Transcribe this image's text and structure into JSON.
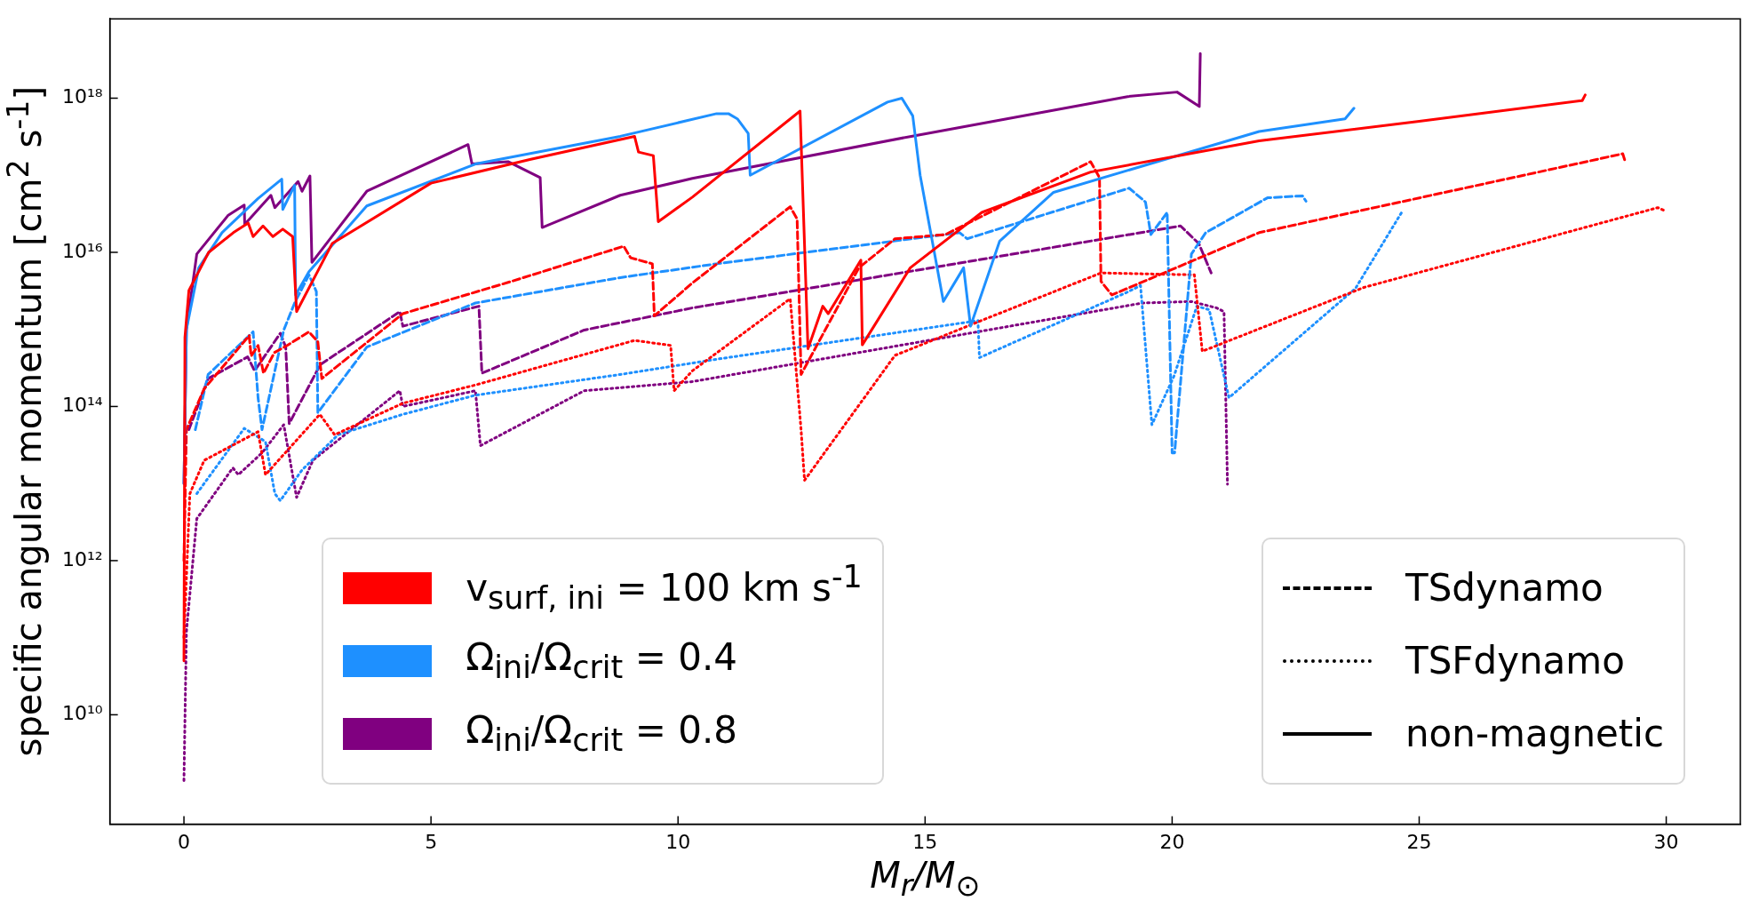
{
  "chart_data": {
    "type": "line",
    "xlabel": "M$_{r}$/M$_{⊙}$",
    "ylabel": "specific angular momentum [cm$^{2}$ s$^{-1}$]",
    "log": "y",
    "legend": "bottom",
    "xlim": [
      -1.5,
      31.5
    ],
    "xticks": [
      0,
      5,
      10,
      15,
      20,
      25,
      30
    ],
    "ylim": [
      380000000.0,
      1.07e+19
    ],
    "yticks": [
      {
        "value": 10000000000.0,
        "label": "10¹⁰"
      },
      {
        "value": 1000000000000.0,
        "label": "10¹²"
      },
      {
        "value": 100000000000000.0,
        "label": "10¹⁴"
      },
      {
        "value": 1e+16,
        "label": "10¹⁶"
      },
      {
        "value": 1e+18,
        "label": "10¹⁸"
      }
    ],
    "series": [
      {
        "color": "#ff0000",
        "line_style": "solid",
        "x": [
          0,
          0.02,
          0.1,
          0.5,
          1.0,
          1.3,
          1.4,
          1.6,
          1.8,
          2.0,
          2.2,
          2.28,
          3.0,
          5.0,
          7.0,
          9.12,
          9.2,
          9.5,
          9.6,
          10.29,
          12.47,
          12.63,
          12.93,
          13.04,
          13.7,
          13.73,
          14.7,
          16.15,
          18.35,
          21.76,
          25,
          28.3,
          28.36
        ],
        "values": [
          50000000000.0,
          790000000000000.0,
          3200000000000000.0,
          1e+16,
          1.8e+16,
          2.4e+16,
          1.6e+16,
          2.2e+16,
          1.6e+16,
          2e+16,
          1.6e+16,
          1700000000000000.0,
          1.3e+16,
          7.9e+16,
          1.6e+17,
          3.2e+17,
          2e+17,
          1.8e+17,
          2.5e+16,
          5.2e+16,
          6.8e+17,
          560000000000000.0,
          2000000000000000.0,
          1600000000000000.0,
          7900000000000000.0,
          630000000000000.0,
          6300000000000000.0,
          3.3e+16,
          1.1e+17,
          2.8e+17,
          5e+17,
          9.3e+17,
          1.1e+18
        ]
      },
      {
        "color": "#1e90ff",
        "line_style": "solid",
        "x": [
          0,
          0.05,
          0.3,
          0.77,
          1.5,
          1.98,
          2.0,
          2.24,
          2.26,
          2.53,
          3.7,
          5.9,
          8.83,
          10.78,
          11.02,
          11.2,
          11.42,
          11.46,
          14.24,
          14.53,
          14.75,
          14.9,
          15.37,
          15.78,
          15.92,
          16.51,
          17.6,
          21.76,
          23.5,
          23.68
        ],
        "values": [
          10000000000000.0,
          1000000000000000.0,
          6300000000000000.0,
          1.8e+16,
          5e+16,
          8.9e+16,
          3.6e+16,
          7.4e+16,
          2800000000000000.0,
          5600000000000000.0,
          4e+16,
          1.4e+17,
          3.2e+17,
          6.3e+17,
          6.3e+17,
          5.4e+17,
          3.5e+17,
          1e+17,
          8.9e+17,
          1e+18,
          5.9e+17,
          1e+17,
          2300000000000000.0,
          6300000000000000.0,
          1100000000000000.0,
          1.4e+16,
          6e+16,
          3.7e+17,
          5.4e+17,
          7.4e+17
        ]
      },
      {
        "color": "#800080",
        "line_style": "solid",
        "x": [
          0,
          0.05,
          0.26,
          0.89,
          1.22,
          1.23,
          1.76,
          1.84,
          2.31,
          2.39,
          2.55,
          2.59,
          3.7,
          5.75,
          5.83,
          6.56,
          7.21,
          7.25,
          8.83,
          10.29,
          14.72,
          19.1,
          20.1,
          20.55,
          20.57
        ],
        "values": [
          10000000000000.0,
          1000000000000000.0,
          9500000000000000.0,
          3e+16,
          4.1e+16,
          2.3e+16,
          5.5e+16,
          3.8e+16,
          8.3e+16,
          6.2e+16,
          9.8e+16,
          7400000000000000.0,
          6.2e+16,
          2.5e+17,
          1.4e+17,
          1.5e+17,
          9.3e+16,
          2.1e+16,
          5.5e+16,
          9.1e+16,
          3.2e+17,
          1.05e+18,
          1.2e+18,
          7.8e+17,
          3.8e+18
        ]
      },
      {
        "color": "#ff0000",
        "line_style": "dashed",
        "x": [
          0,
          0.05,
          0.41,
          1.32,
          1.36,
          1.5,
          1.61,
          1.83,
          2.09,
          2.53,
          2.71,
          2.79,
          4.43,
          6.63,
          8.9,
          9.04,
          9.48,
          9.52,
          10.29,
          12.27,
          12.41,
          12.49,
          13.66,
          14.39,
          15.41,
          18.35,
          18.53,
          18.56,
          18.78,
          21.76,
          29.12,
          29.17
        ],
        "values": [
          1000000000000.0,
          50000000000000.0,
          170000000000000.0,
          830000000000000.0,
          450000000000000.0,
          620000000000000.0,
          270000000000000.0,
          500000000000000.0,
          620000000000000.0,
          930000000000000.0,
          690000000000000.0,
          230000000000000.0,
          1600000000000000.0,
          4200000000000000.0,
          1.2e+16,
          8500000000000000.0,
          7100000000000000.0,
          1500000000000000.0,
          4000000000000000.0,
          3.9e+16,
          2.7e+16,
          260000000000000.0,
          6300000000000000.0,
          1.5e+16,
          1.7e+16,
          1.5e+17,
          9.3e+16,
          4200000000000000.0,
          2800000000000000.0,
          1.8e+16,
          1.9e+17,
          1.5e+17
        ]
      },
      {
        "color": "#1e90ff",
        "line_style": "dashed",
        "x": [
          0.23,
          0.49,
          1.4,
          1.5,
          1.58,
          2.02,
          2.24,
          2.53,
          2.68,
          2.71,
          3.7,
          5.9,
          8.83,
          10.78,
          15.7,
          15.85,
          19.13,
          19.46,
          19.57,
          19.9,
          20.0,
          20.05,
          20.39,
          20.68,
          21.93,
          22.64,
          22.71
        ],
        "values": [
          50000000000000.0,
          260000000000000.0,
          930000000000000.0,
          130000000000000.0,
          50000000000000.0,
          980000000000000.0,
          2200000000000000.0,
          5100000000000000.0,
          3100000000000000.0,
          83000000000000.0,
          590000000000000.0,
          2200000000000000.0,
          4700000000000000.0,
          7100000000000000.0,
          1.8e+16,
          1.5e+16,
          6.8e+16,
          4.5e+16,
          1.7e+16,
          3.3e+16,
          25000000000000.0,
          25000000000000.0,
          9500000000000000.0,
          1.8e+16,
          5.1e+16,
          5.4e+16,
          4.6e+16
        ]
      },
      {
        "color": "#800080",
        "line_style": "dashed",
        "x": [
          0.1,
          0.49,
          1.29,
          1.43,
          1.95,
          2.06,
          2.13,
          2.76,
          4.37,
          4.43,
          5.97,
          6.03,
          8.1,
          10.29,
          20.17,
          20.54,
          20.79
        ],
        "values": [
          50000000000000.0,
          230000000000000.0,
          440000000000000.0,
          290000000000000.0,
          890000000000000.0,
          590000000000000.0,
          60000000000000.0,
          350000000000000.0,
          1700000000000000.0,
          1100000000000000.0,
          2000000000000000.0,
          270000000000000.0,
          980000000000000.0,
          1900000000000000.0,
          2.2e+16,
          1.3e+16,
          5400000000000000.0
        ]
      },
      {
        "color": "#ff0000",
        "line_style": "dotted",
        "x": [
          0,
          0.12,
          0.41,
          1.5,
          1.65,
          2.75,
          3.05,
          4.43,
          5.9,
          9.12,
          9.85,
          9.92,
          10.29,
          12.27,
          12.49,
          12.56,
          14.39,
          16.0,
          18.56,
          20.45,
          20.61,
          23.88,
          29.83,
          29.96
        ],
        "values": [
          100000000000.0,
          7400000000000.0,
          20000000000000.0,
          47000000000000.0,
          13000000000000.0,
          79000000000000.0,
          43000000000000.0,
          110000000000000.0,
          190000000000000.0,
          720000000000000.0,
          620000000000000.0,
          160000000000000.0,
          290000000000000.0,
          2500000000000000.0,
          50000000000000.0,
          11000000000000.0,
          460000000000000.0,
          1200000000000000.0,
          5400000000000000.0,
          5100000000000000.0,
          520000000000000.0,
          3500000000000000.0,
          3.8e+16,
          3.5e+16
        ]
      },
      {
        "color": "#1e90ff",
        "line_style": "dotted",
        "x": [
          0.26,
          1.22,
          1.65,
          1.84,
          1.95,
          2.39,
          3.12,
          4.43,
          5.9,
          8.83,
          10.78,
          16.07,
          16.1,
          19.07,
          19.36,
          19.59,
          20.04,
          20.5,
          20.75,
          21.15,
          23.71,
          24.67
        ],
        "values": [
          7400000000000.0,
          52000000000000.0,
          35000000000000.0,
          7400000000000.0,
          6000000000000.0,
          15000000000000.0,
          43000000000000.0,
          79000000000000.0,
          140000000000000.0,
          260000000000000.0,
          410000000000000.0,
          1300000000000000.0,
          430000000000000.0,
          3000000000000000.0,
          3700000000000000.0,
          58000000000000.0,
          250000000000000.0,
          2000000000000000.0,
          1800000000000000.0,
          130000000000000.0,
          3400000000000000.0,
          3.5e+16
        ]
      },
      {
        "color": "#800080",
        "line_style": "dotted",
        "x": [
          0,
          0.05,
          0.26,
          0.99,
          1.1,
          1.58,
          2.02,
          2.28,
          2.61,
          4.37,
          4.43,
          5.9,
          6.0,
          8.1,
          10.29,
          19.4,
          20.39,
          20.9,
          21.05,
          21.12
        ],
        "values": [
          1400000000.0,
          120000000000.0,
          3500000000000.0,
          16000000000000.0,
          13000000000000.0,
          25000000000000.0,
          58000000000000.0,
          6600000000000.0,
          20000000000000.0,
          160000000000000.0,
          100000000000000.0,
          160000000000000.0,
          31000000000000.0,
          160000000000000.0,
          210000000000000.0,
          2200000000000000.0,
          2300000000000000.0,
          1900000000000000.0,
          1700000000000000.0,
          9800000000000.0
        ]
      },
      {
        "type": "bar",
        "name": "v$_{surf, ini}$ = 100 km s$^{-1}$",
        "color": "#ff0000"
      },
      {
        "type": "bar",
        "name": "Ω$_{ini}$/Ω$_{crit}$ = 0.4",
        "color": "#1e90ff"
      },
      {
        "type": "bar",
        "name": "Ω$_{ini}$/Ω$_{crit}$ = 0.8",
        "color": "#800080"
      },
      {
        "type": "line",
        "name": "TSdynamo",
        "color": "#000000",
        "line_style": "dashed"
      },
      {
        "type": "line",
        "name": "TSFdynamo",
        "color": "#000000",
        "line_style": "dotted"
      },
      {
        "type": "line",
        "name": "non-magnetic",
        "color": "#000000",
        "line_style": "solid"
      }
    ]
  }
}
